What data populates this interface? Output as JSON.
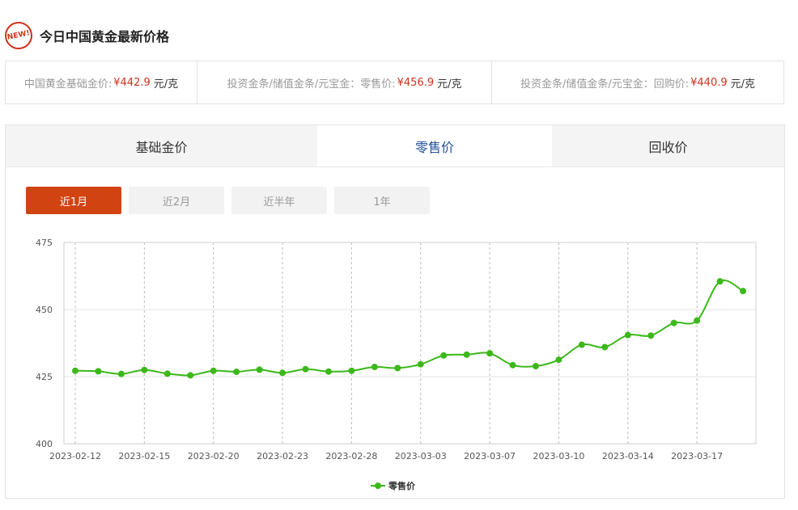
{
  "header": {
    "badge": "NEW!",
    "title": "今日中国黄金最新价格"
  },
  "prices": [
    {
      "label": "中国黄金基础金价:",
      "value": "¥442.9",
      "unit": "元/克"
    },
    {
      "label": "投资金条/储值金条/元宝金：零售价:",
      "value": "¥456.9",
      "unit": "元/克"
    },
    {
      "label": "投资金条/储值金条/元宝金：回购价:",
      "value": "¥440.9",
      "unit": "元/克"
    }
  ],
  "tabs": [
    {
      "label": "基础金价",
      "active": false
    },
    {
      "label": "零售价",
      "active": true
    },
    {
      "label": "回收价",
      "active": false
    }
  ],
  "ranges": [
    {
      "label": "近1月",
      "active": true
    },
    {
      "label": "近2月",
      "active": false
    },
    {
      "label": "近半年",
      "active": false
    },
    {
      "label": "1年",
      "active": false
    }
  ],
  "colors": {
    "accent": "#d24312",
    "price": "#d0321b",
    "line": "#3cb81a",
    "activeTab": "#1f4f96"
  },
  "chart_data": {
    "type": "line",
    "title": "",
    "xlabel": "",
    "ylabel": "",
    "ylim": [
      400,
      475
    ],
    "yticks": [
      400,
      425,
      450,
      475
    ],
    "grid": true,
    "legend": "bottom-center",
    "x_tick_labels": [
      "2023-02-12",
      "2023-02-15",
      "2023-02-20",
      "2023-02-23",
      "2023-02-28",
      "2023-03-03",
      "2023-03-07",
      "2023-03-10",
      "2023-03-14",
      "2023-03-17"
    ],
    "series": [
      {
        "name": "零售价",
        "values": [
          427.2,
          427.0,
          426.0,
          427.5,
          426.1,
          425.5,
          427.2,
          426.8,
          427.6,
          426.4,
          427.8,
          426.9,
          427.2,
          428.6,
          428.2,
          429.6,
          432.9,
          433.2,
          433.7,
          429.3,
          428.9,
          431.3,
          436.9,
          436.0,
          440.5,
          440.3,
          445.0,
          445.9,
          460.5,
          456.9
        ]
      }
    ]
  }
}
